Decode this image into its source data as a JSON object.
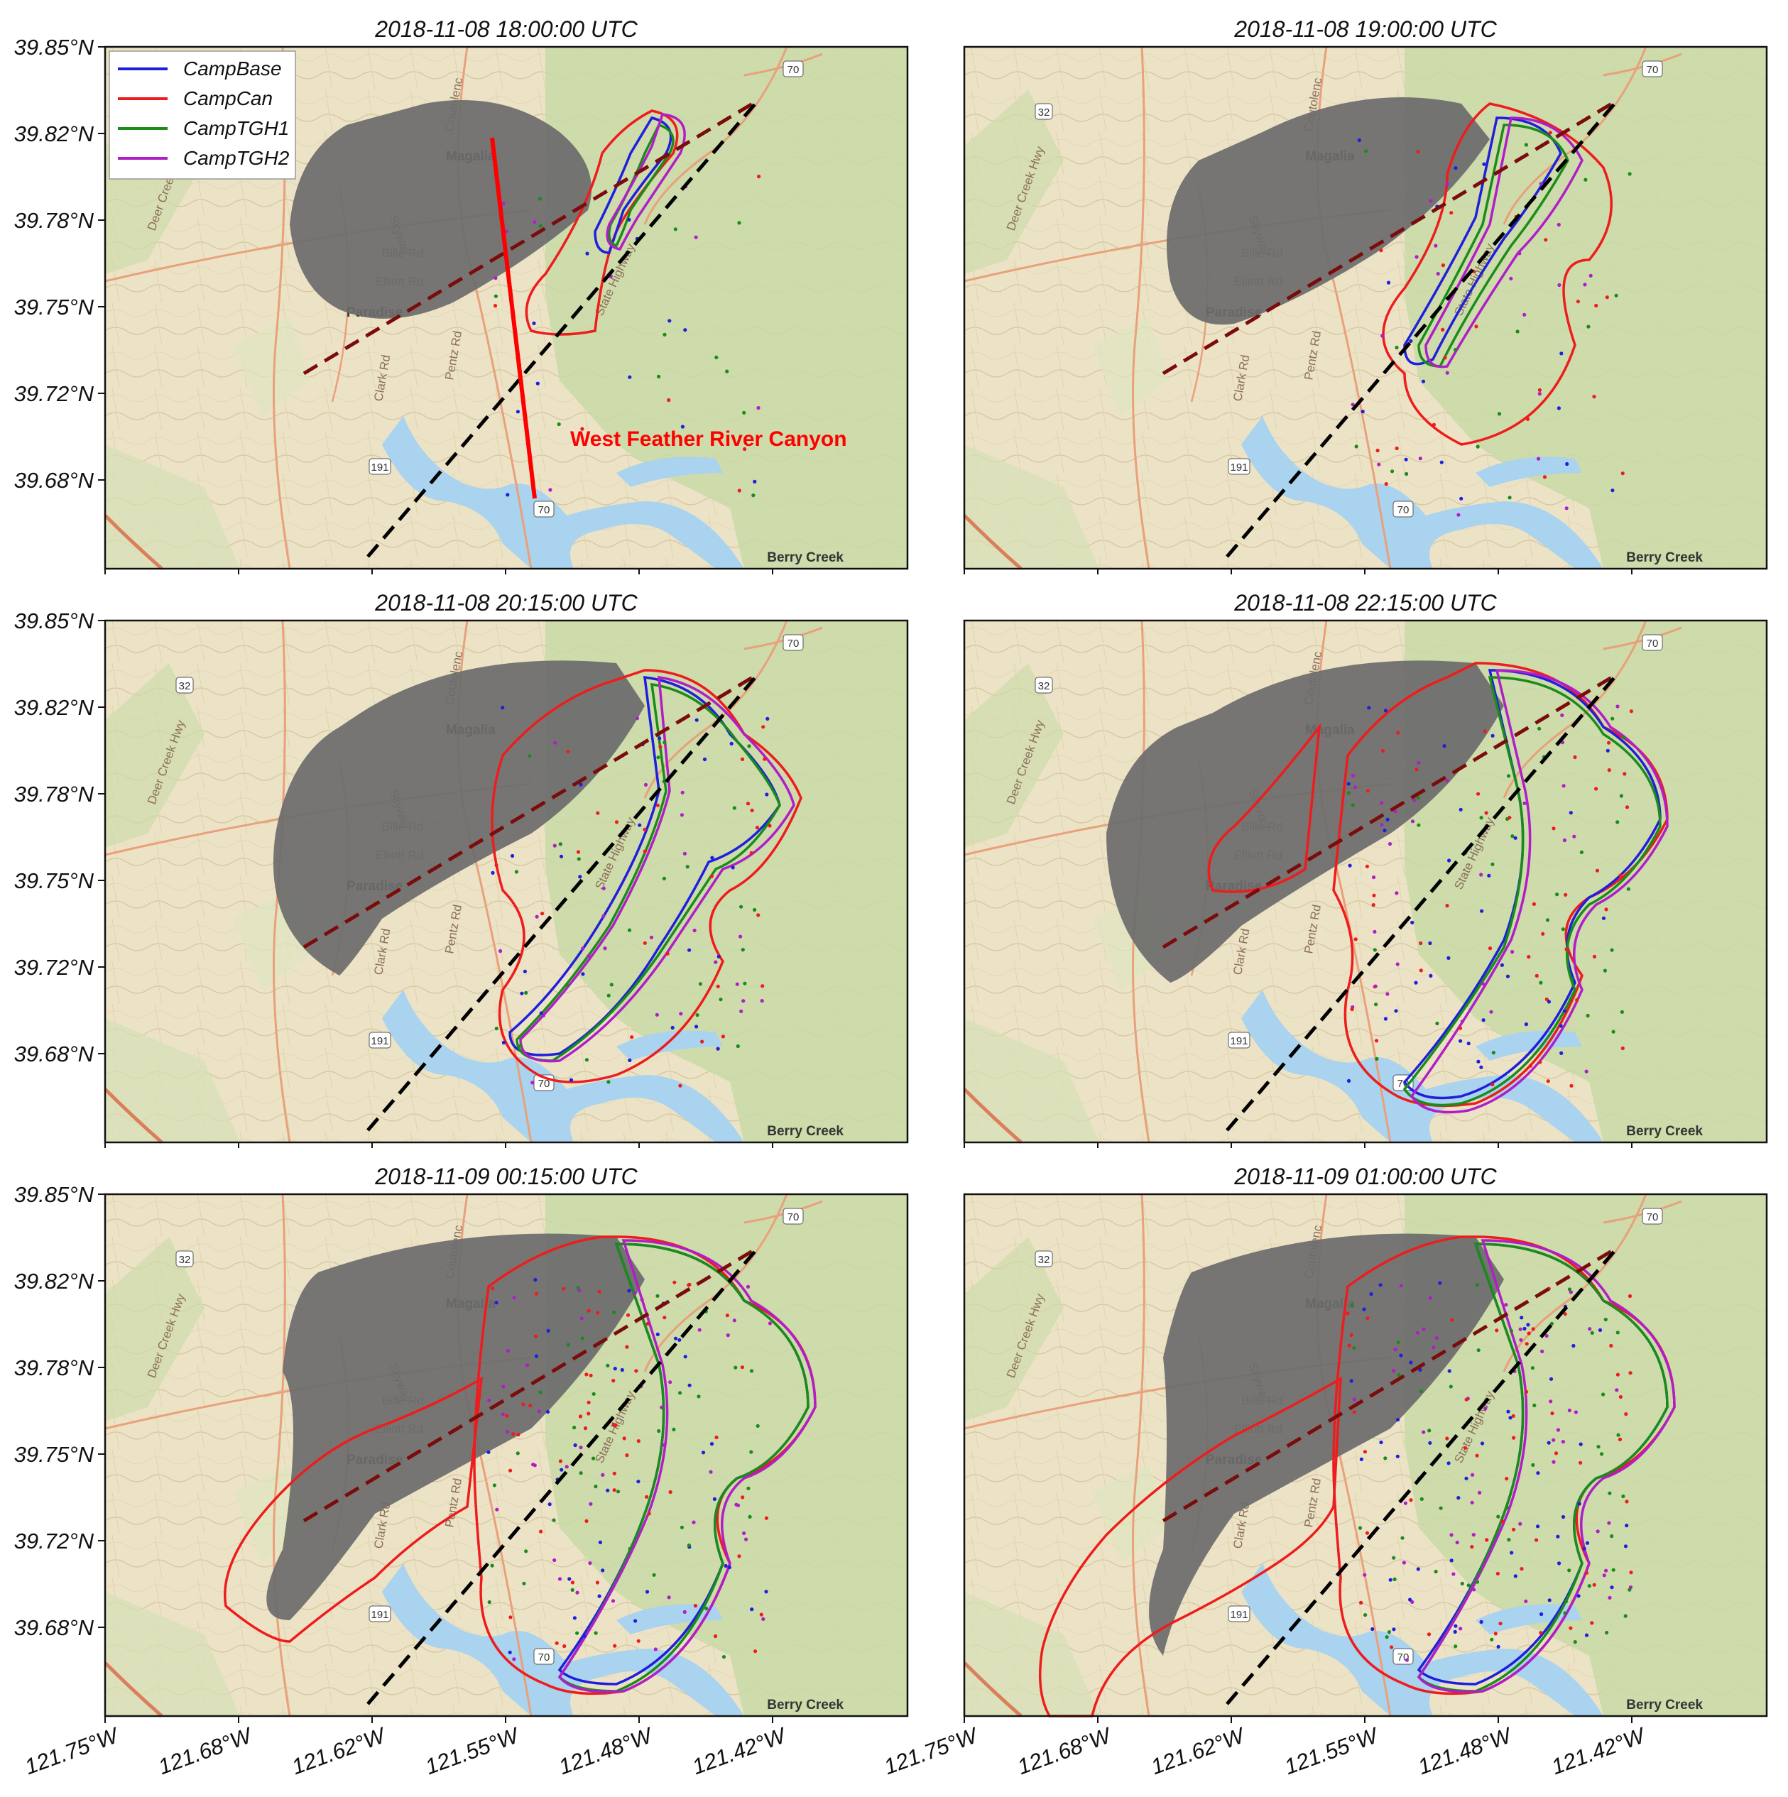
{
  "figure": {
    "panels": [
      {
        "title": "2018-11-08 18:00:00 UTC",
        "stage": 0
      },
      {
        "title": "2018-11-08 19:00:00 UTC",
        "stage": 1
      },
      {
        "title": "2018-11-08 20:15:00 UTC",
        "stage": 2
      },
      {
        "title": "2018-11-08 22:15:00 UTC",
        "stage": 3
      },
      {
        "title": "2018-11-09 00:15:00 UTC",
        "stage": 4
      },
      {
        "title": "2018-11-09 01:00:00 UTC",
        "stage": 5
      }
    ],
    "lat_ticks": [
      "39.85°N",
      "39.82°N",
      "39.78°N",
      "39.75°N",
      "39.72°N",
      "39.68°N"
    ],
    "lon_ticks": [
      "121.75°W",
      "121.68°W",
      "121.62°W",
      "121.55°W",
      "121.48°W",
      "121.42°W"
    ],
    "legend": [
      {
        "name": "CampBase",
        "color": "#1f1fdc"
      },
      {
        "name": "CampCan",
        "color": "#ee1c1c"
      },
      {
        "name": "CampTGH1",
        "color": "#1a8c1a"
      },
      {
        "name": "CampTGH2",
        "color": "#b01ec8"
      }
    ],
    "annotation": "West Feather River Canyon",
    "map_labels": {
      "magalia": "Magalia",
      "paradise": "Paradise",
      "berry_creek": "Berry Creek",
      "bille_rd": "Bille Rd",
      "elliott_rd": "Elliott Rd",
      "skyway": "Skyway",
      "clark_rd": "Clark Rd",
      "pentz_rd": "Pentz Rd",
      "coutolenc": "Coutolenc",
      "deer_creek_hwy": "Deer Creek Hwy",
      "state_highway": "State Highway",
      "hwy_70": "70",
      "hwy_191": "191",
      "hwy_32": "32"
    },
    "colors": {
      "burned_area": "#6b6b6b",
      "cross_line_dark": "#7a0c0c",
      "cross_line_black": "#000000",
      "transect": "#ff0000",
      "terrain": "#ece3c6",
      "forest": "#c9d9a6",
      "water": "#a9d3ee",
      "roads": "#e9a07b"
    }
  }
}
